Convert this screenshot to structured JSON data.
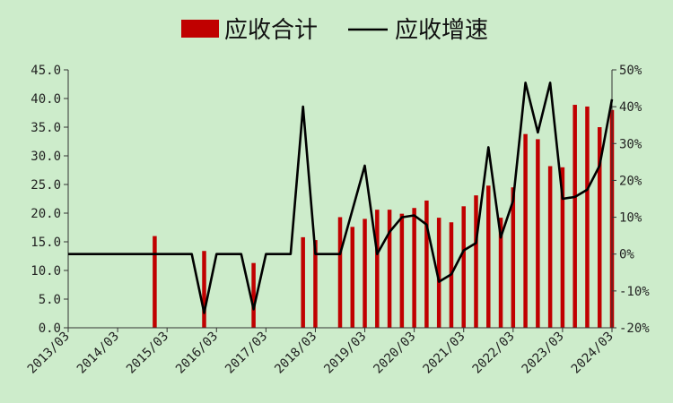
{
  "chart_data": {
    "type": "bar",
    "title": "",
    "xlabel": "",
    "ylabel": "",
    "legend_position": "top-center",
    "grid": false,
    "colors": {
      "bar": "#c00000",
      "line": "#000000",
      "background": "#cdeccb"
    },
    "x_tick_labels": [
      "2013/03",
      "2014/03",
      "2015/03",
      "2016/03",
      "2017/03",
      "2018/03",
      "2019/03",
      "2020/03",
      "2021/03",
      "2022/03",
      "2023/03",
      "2024/03"
    ],
    "y_left": {
      "ylim": [
        0,
        45
      ],
      "ticks": [
        "0.0",
        "5.0",
        "10.0",
        "15.0",
        "20.0",
        "25.0",
        "30.0",
        "35.0",
        "40.0",
        "45.0"
      ]
    },
    "y_right": {
      "ylim": [
        -20,
        50
      ],
      "ticks": [
        "-20%",
        "-10%",
        "0%",
        "10%",
        "20%",
        "30%",
        "40%",
        "50%"
      ]
    },
    "x_quarters": [
      "2013Q1",
      "2013Q2",
      "2013Q3",
      "2013Q4",
      "2014Q1",
      "2014Q2",
      "2014Q3",
      "2014Q4",
      "2015Q1",
      "2015Q2",
      "2015Q3",
      "2015Q4",
      "2016Q1",
      "2016Q2",
      "2016Q3",
      "2016Q4",
      "2017Q1",
      "2017Q2",
      "2017Q3",
      "2017Q4",
      "2018Q1",
      "2018Q2",
      "2018Q3",
      "2018Q4",
      "2019Q1",
      "2019Q2",
      "2019Q3",
      "2019Q4",
      "2020Q1",
      "2020Q2",
      "2020Q3",
      "2020Q4",
      "2021Q1",
      "2021Q2",
      "2021Q3",
      "2021Q4",
      "2022Q1",
      "2022Q2",
      "2022Q3",
      "2022Q4",
      "2023Q1",
      "2023Q2",
      "2023Q3",
      "2023Q4",
      "2024Q1"
    ],
    "series": [
      {
        "name": "应收合计",
        "kind": "bar",
        "axis": "left",
        "values": [
          0,
          0,
          0,
          0,
          0,
          0,
          0,
          16.0,
          0,
          0,
          0,
          13.4,
          0,
          0,
          0,
          11.3,
          0,
          0,
          0,
          15.8,
          15.3,
          0,
          19.3,
          17.6,
          19.0,
          20.6,
          20.6,
          19.9,
          20.9,
          22.2,
          19.2,
          18.4,
          21.2,
          23.1,
          24.8,
          19.2,
          24.5,
          33.8,
          32.9,
          28.2,
          28.0,
          38.9,
          38.6,
          35.0,
          38.0
        ]
      },
      {
        "name": "应收增速",
        "kind": "line",
        "axis": "right",
        "values": [
          0,
          0,
          0,
          0,
          0,
          0,
          0,
          0,
          0,
          0,
          0,
          -16,
          0,
          0,
          0,
          -15,
          0,
          0,
          0,
          40,
          0,
          0,
          0,
          12,
          24,
          0,
          6,
          10,
          10.5,
          8,
          -7.5,
          -5.5,
          1,
          3,
          29,
          4.5,
          14.5,
          46.5,
          33,
          46.5,
          15,
          15.5,
          17.5,
          24,
          42
        ]
      }
    ]
  }
}
